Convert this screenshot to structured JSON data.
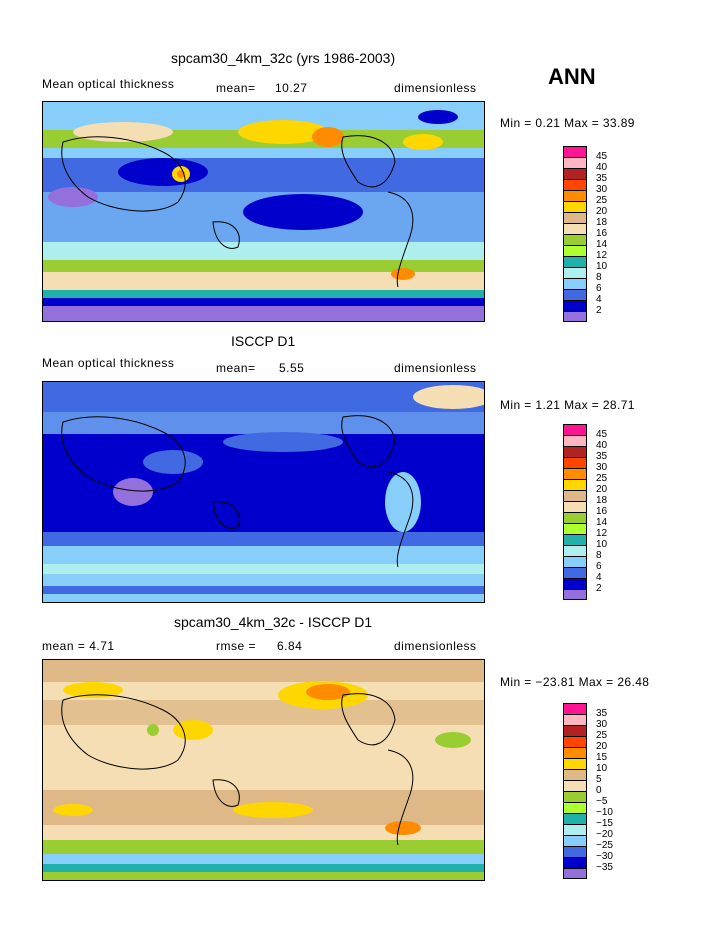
{
  "season": "ANN",
  "panels": [
    {
      "title": "spcam30_4km_32c (yrs 1986-2003)",
      "left": "Mean optical thickness",
      "middle_label": "mean=",
      "middle_value": "10.27",
      "right": "dimensionless",
      "minmax": "Min =   0.21 Max =  33.89",
      "levels": [
        "45",
        "40",
        "35",
        "30",
        "25",
        "20",
        "18",
        "16",
        "14",
        "12",
        "10",
        "8",
        "6",
        "4",
        "2"
      ],
      "colors": [
        "#ff1493",
        "#ffb6c1",
        "#b22222",
        "#ff4500",
        "#ff8c00",
        "#ffd700",
        "#deb887",
        "#f5deb3",
        "#9acd32",
        "#adff2f",
        "#20b2aa",
        "#afeeee",
        "#87cefa",
        "#4169e1",
        "#0000cd",
        "#9370db"
      ]
    },
    {
      "title": "ISCCP D1",
      "left": "Mean optical thickness",
      "middle_label": "mean=",
      "middle_value": "5.55",
      "right": "dimensionless",
      "minmax": "Min =   1.21 Max =  28.71",
      "levels": [
        "45",
        "40",
        "35",
        "30",
        "25",
        "20",
        "18",
        "16",
        "14",
        "12",
        "10",
        "8",
        "6",
        "4",
        "2"
      ],
      "colors": [
        "#ff1493",
        "#ffb6c1",
        "#b22222",
        "#ff4500",
        "#ff8c00",
        "#ffd700",
        "#deb887",
        "#f5deb3",
        "#9acd32",
        "#adff2f",
        "#20b2aa",
        "#afeeee",
        "#87cefa",
        "#4169e1",
        "#0000cd",
        "#9370db"
      ]
    },
    {
      "title": "spcam30_4km_32c - ISCCP D1",
      "left": "mean =    4.71",
      "middle_label": "rmse =",
      "middle_value": "6.84",
      "right": "dimensionless",
      "minmax": "Min = −23.81 Max =  26.48",
      "levels": [
        "35",
        "30",
        "25",
        "20",
        "15",
        "10",
        "5",
        "0",
        "−5",
        "−10",
        "−15",
        "−20",
        "−25",
        "−30",
        "−35"
      ],
      "colors": [
        "#ff1493",
        "#ffb6c1",
        "#b22222",
        "#ff4500",
        "#ff8c00",
        "#ffd700",
        "#deb887",
        "#f5deb3",
        "#9acd32",
        "#adff2f",
        "#20b2aa",
        "#afeeee",
        "#87cefa",
        "#4169e1",
        "#0000cd",
        "#9370db"
      ]
    }
  ]
}
